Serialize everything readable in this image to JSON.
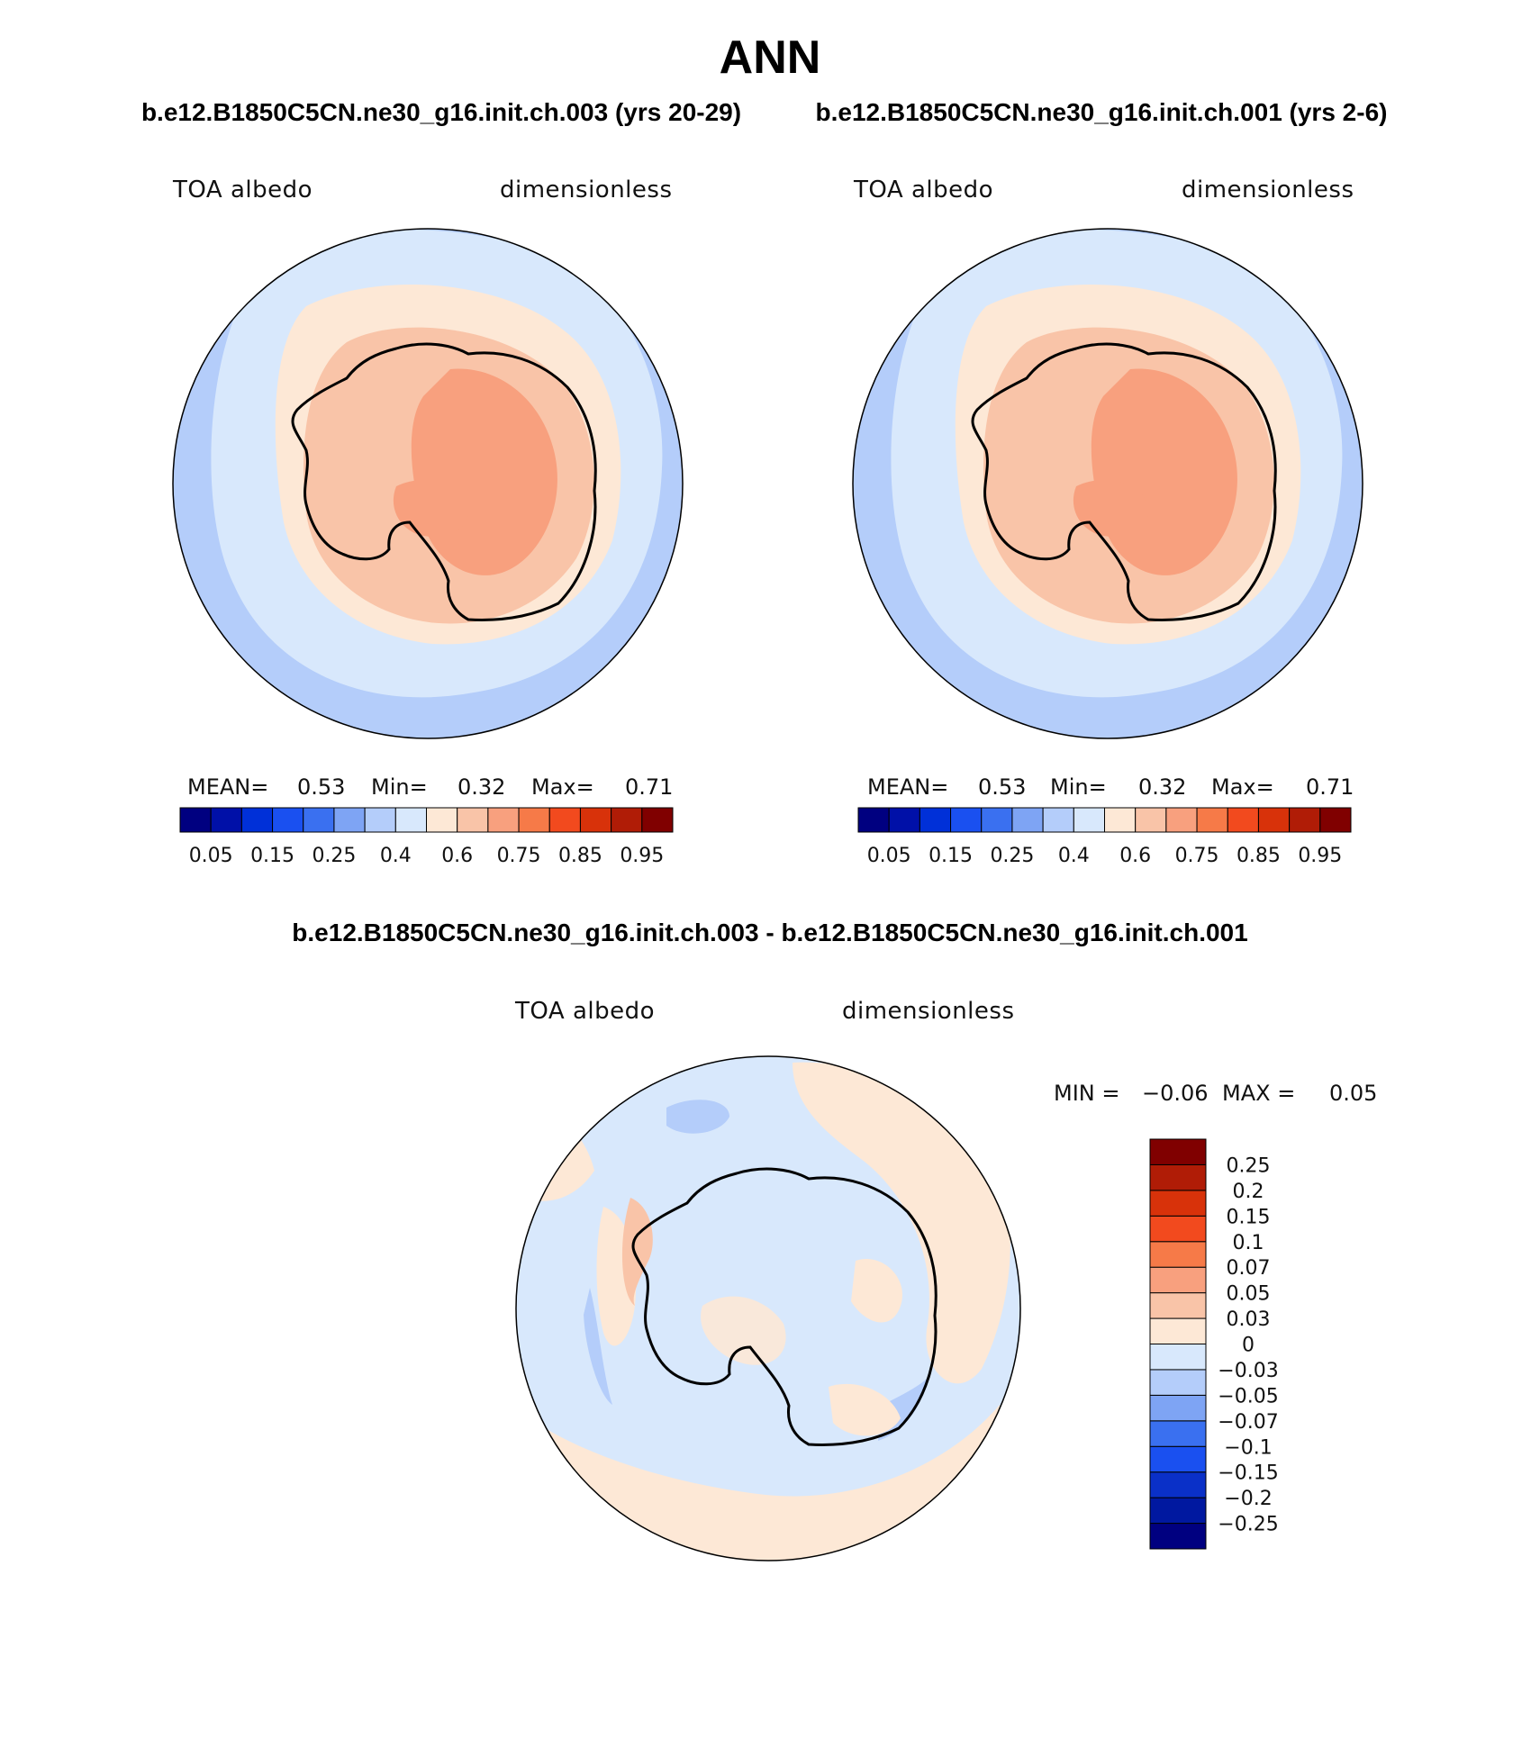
{
  "title": "ANN",
  "panels": [
    {
      "heading": "b.e12.B1850C5CN.ne30_g16.init.ch.003 (yrs 20-29)",
      "left_label": "TOA albedo",
      "right_label": "dimensionless",
      "stats": {
        "mean_label": "MEAN=",
        "mean": "0.53",
        "min_label": "Min=",
        "min": "0.32",
        "max_label": "Max=",
        "max": "0.71"
      }
    },
    {
      "heading": "b.e12.B1850C5CN.ne30_g16.init.ch.001 (yrs 2-6)",
      "left_label": "TOA albedo",
      "right_label": "dimensionless",
      "stats": {
        "mean_label": "MEAN=",
        "mean": "0.53",
        "min_label": "Min=",
        "min": "0.32",
        "max_label": "Max=",
        "max": "0.71"
      }
    }
  ],
  "diff_panel": {
    "heading": "b.e12.B1850C5CN.ne30_g16.init.ch.003 - b.e12.B1850C5CN.ne30_g16.init.ch.001",
    "left_label": "TOA albedo",
    "right_label": "dimensionless",
    "stats": {
      "min_label": "MIN =",
      "min": "−0.06",
      "max_label": "MAX =",
      "max": "0.05"
    }
  },
  "colorbar_abs": {
    "colors": [
      "#000080",
      "#0010a8",
      "#0030d8",
      "#1a50f0",
      "#3a70f0",
      "#7ea4f4",
      "#b4cdfa",
      "#d8e8fc",
      "#fde8d6",
      "#f9c4a8",
      "#f8a07e",
      "#f67a48",
      "#f24a1e",
      "#d8320a",
      "#b01c06",
      "#800000"
    ],
    "labels": [
      "0.05",
      "0.15",
      "0.25",
      "0.4",
      "0.6",
      "0.75",
      "0.85",
      "0.95"
    ]
  },
  "colorbar_diff": {
    "colors": [
      "#000080",
      "#0018a0",
      "#0a30c8",
      "#1a50f0",
      "#3a70f0",
      "#7ea4f4",
      "#b4cdfa",
      "#d8e8fc",
      "#fde8d6",
      "#f9c4a8",
      "#f8a07e",
      "#f67a48",
      "#f24a1e",
      "#d8320a",
      "#b01c06",
      "#800000"
    ],
    "labels": [
      "−0.25",
      "−0.2",
      "−0.15",
      "−0.1",
      "−0.07",
      "−0.05",
      "−0.03",
      "0",
      "0.03",
      "0.05",
      "0.07",
      "0.1",
      "0.15",
      "0.2",
      "0.25"
    ]
  },
  "map_colors": {
    "ocean_outer": "#b4cdfa",
    "ocean_mid": "#d8e8fc",
    "ice_ring": "#fde8d6",
    "coast_band": "#f9c4a8",
    "plateau": "#f8a07e",
    "diff_neg": "#d8e8fc",
    "diff_neg2": "#b4cdfa",
    "diff_pos": "#fde8d6",
    "diff_pos2": "#f9c4a8"
  }
}
